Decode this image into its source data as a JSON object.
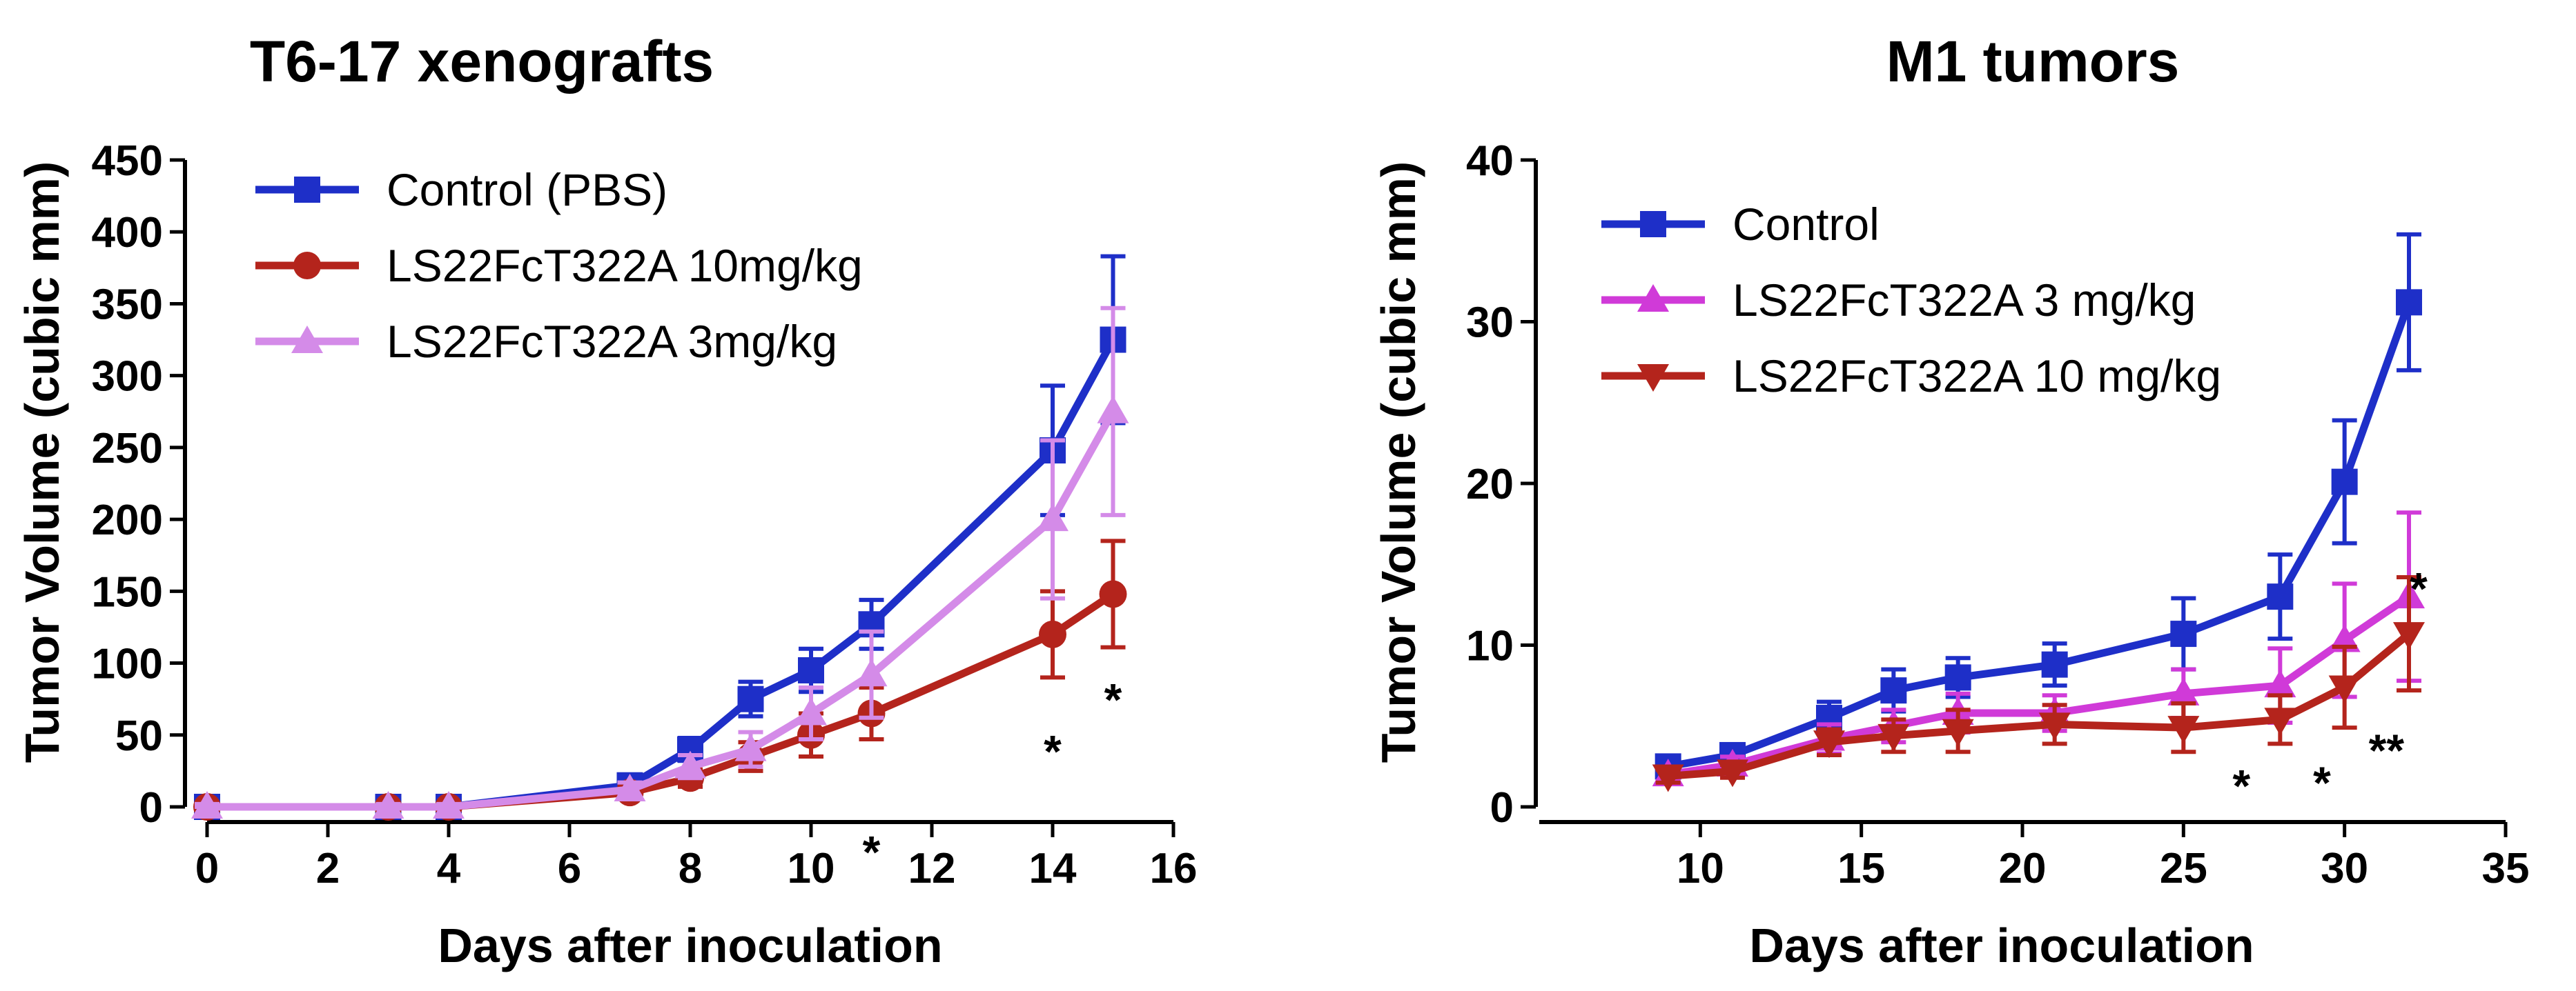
{
  "chart_data": [
    {
      "type": "line",
      "title": "T6-17 xenografts",
      "xlabel": "Days after inoculation",
      "ylabel": "Tumor Volume (cubic mm)",
      "xlim": [
        0,
        16
      ],
      "ylim": [
        0,
        450
      ],
      "xticks": [
        0,
        2,
        4,
        6,
        8,
        10,
        12,
        14,
        16
      ],
      "yticks": [
        0,
        50,
        100,
        150,
        200,
        250,
        300,
        350,
        400,
        450
      ],
      "legend_position": "top-left",
      "series": [
        {
          "name": "Control (PBS)",
          "color": "#1e2fc8",
          "marker": "square",
          "x": [
            0,
            3,
            4,
            7,
            8,
            9,
            10,
            11,
            14,
            15
          ],
          "y": [
            0,
            0,
            0,
            15,
            40,
            75,
            95,
            127,
            248,
            325
          ],
          "err": [
            2,
            2,
            2,
            5,
            8,
            12,
            15,
            17,
            45,
            58
          ]
        },
        {
          "name": "LS22FcT322A 10mg/kg",
          "color": "#b4241c",
          "marker": "circle",
          "x": [
            0,
            3,
            4,
            7,
            8,
            9,
            10,
            11,
            14,
            15
          ],
          "y": [
            0,
            0,
            0,
            10,
            20,
            35,
            50,
            65,
            120,
            148
          ],
          "err": [
            2,
            2,
            2,
            4,
            6,
            10,
            15,
            18,
            30,
            37
          ]
        },
        {
          "name": "LS22FcT322A 3mg/kg",
          "color": "#d48be8",
          "marker": "triangle",
          "x": [
            0,
            3,
            4,
            7,
            8,
            9,
            10,
            11,
            14,
            15
          ],
          "y": [
            0,
            0,
            0,
            12,
            28,
            40,
            65,
            92,
            200,
            275
          ],
          "err": [
            2,
            2,
            2,
            5,
            8,
            12,
            18,
            30,
            55,
            72
          ]
        }
      ],
      "annotations": [
        {
          "text": "*",
          "x": 11,
          "y": -28
        },
        {
          "text": "*",
          "x": 14,
          "y": 42
        },
        {
          "text": "*",
          "x": 15,
          "y": 78
        }
      ]
    },
    {
      "type": "line",
      "title": "M1 tumors",
      "xlabel": "Days after inoculation",
      "ylabel": "Tumor Volume (cubic mm)",
      "xlim": [
        5,
        35
      ],
      "ylim": [
        0,
        40
      ],
      "xticks": [
        10,
        15,
        20,
        25,
        30,
        35
      ],
      "yticks": [
        0,
        10,
        20,
        30,
        40
      ],
      "legend_position": "top-left",
      "series": [
        {
          "name": "Control",
          "color": "#1e2fc8",
          "marker": "square",
          "x": [
            9,
            11,
            14,
            16,
            18,
            21,
            25,
            28,
            30,
            32
          ],
          "y": [
            2.5,
            3.2,
            5.5,
            7.2,
            8.0,
            8.8,
            10.7,
            13.0,
            20.1,
            31.2
          ],
          "err": [
            0.4,
            0.5,
            1.0,
            1.3,
            1.2,
            1.3,
            2.2,
            2.6,
            3.8,
            4.2
          ]
        },
        {
          "name": "LS22FcT322A 3 mg/kg",
          "color": "#d03ad8",
          "marker": "triangle",
          "x": [
            9,
            11,
            14,
            16,
            18,
            21,
            25,
            28,
            30,
            32
          ],
          "y": [
            2.0,
            2.6,
            4.2,
            5.0,
            5.8,
            5.8,
            7.0,
            7.5,
            10.3,
            13.0
          ],
          "err": [
            0.4,
            0.5,
            0.9,
            1.0,
            1.2,
            1.1,
            1.5,
            2.3,
            3.5,
            5.2
          ]
        },
        {
          "name": "LS22FcT322A 10 mg/kg",
          "color": "#b4241c",
          "marker": "triangle-down",
          "x": [
            9,
            11,
            14,
            16,
            18,
            21,
            25,
            28,
            30,
            32
          ],
          "y": [
            1.9,
            2.2,
            4.0,
            4.4,
            4.7,
            5.1,
            4.9,
            5.4,
            7.4,
            10.7
          ],
          "err": [
            0.4,
            0.4,
            0.8,
            1.0,
            1.3,
            1.2,
            1.5,
            1.5,
            2.5,
            3.5
          ]
        }
      ],
      "annotations": [
        {
          "text": "*",
          "x": 26.8,
          "y": 1.6
        },
        {
          "text": "*",
          "x": 29.3,
          "y": 1.8
        },
        {
          "text": "**",
          "x": 31.3,
          "y": 3.8
        },
        {
          "text": "*",
          "x": 32.3,
          "y": 13.8
        }
      ]
    }
  ]
}
